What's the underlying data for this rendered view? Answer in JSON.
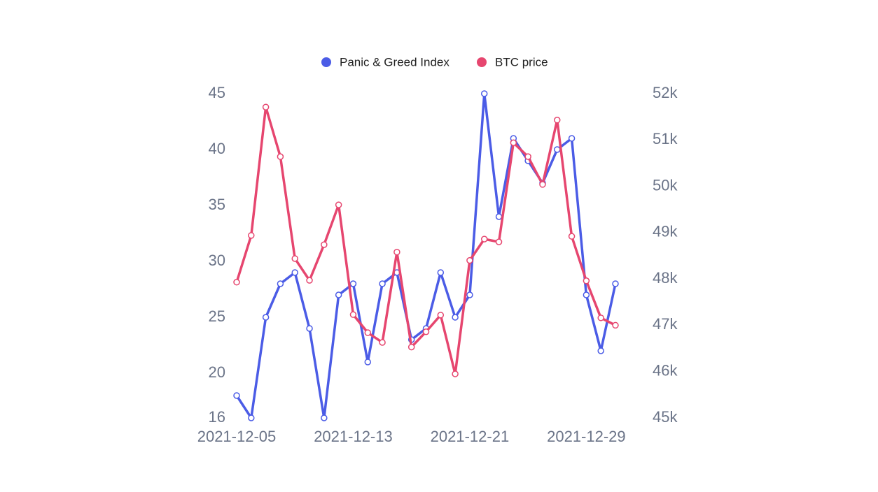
{
  "chart_data": {
    "type": "line",
    "categories": [
      "2021-12-05",
      null,
      null,
      null,
      null,
      null,
      null,
      null,
      "2021-12-13",
      null,
      null,
      null,
      null,
      null,
      null,
      null,
      "2021-12-21",
      null,
      null,
      null,
      null,
      null,
      null,
      null,
      "2021-12-29",
      null,
      null
    ],
    "series": [
      {
        "name": "Panic & Greed Index",
        "color": "#4b5ce6",
        "values": [
          18,
          16,
          25,
          28,
          29,
          24,
          16,
          27,
          28,
          21,
          28,
          29,
          23,
          24,
          29,
          25,
          27,
          45,
          34,
          41,
          39,
          37,
          40,
          41,
          27,
          22,
          28
        ]
      },
      {
        "name": "BTC price",
        "color": "#e6466f",
        "axis": "y2",
        "values": [
          47930,
          48940,
          51710,
          50640,
          48440,
          47970,
          48740,
          49600,
          47230,
          46840,
          46630,
          48580,
          46530,
          46860,
          47220,
          45950,
          48400,
          48860,
          48800,
          50940,
          50640,
          50040,
          51430,
          48920,
          47960,
          47160,
          47000
        ]
      }
    ],
    "ylim": [
      16,
      45
    ],
    "yticks": [
      16,
      20,
      25,
      30,
      35,
      40,
      45
    ],
    "y2lim": [
      45000,
      52000
    ],
    "y2ticks": [
      {
        "value": 45000,
        "label": "45k"
      },
      {
        "value": 46000,
        "label": "46k"
      },
      {
        "value": 47000,
        "label": "47k"
      },
      {
        "value": 48000,
        "label": "48k"
      },
      {
        "value": 49000,
        "label": "49k"
      },
      {
        "value": 50000,
        "label": "50k"
      },
      {
        "value": 51000,
        "label": "51k"
      },
      {
        "value": 52000,
        "label": "52k"
      }
    ],
    "legend": "top"
  }
}
